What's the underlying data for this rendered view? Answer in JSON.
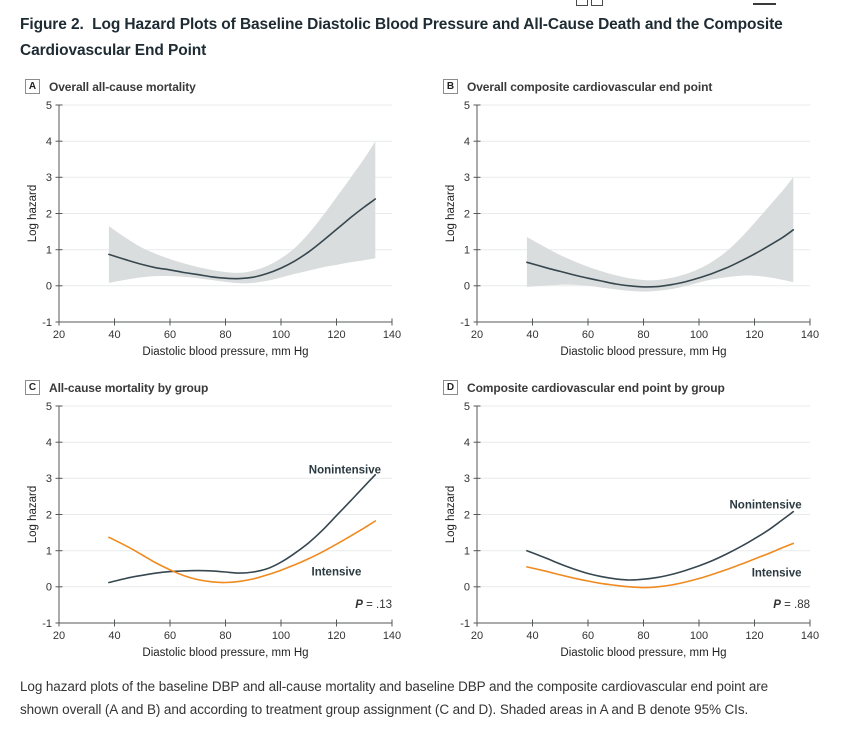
{
  "header": {
    "title_lines": [
      "Figure 2.  Log Hazard Plots of Baseline Diastolic Blood Pressure and All-Cause Death and the Composite",
      "Cardiovascular End Point"
    ]
  },
  "caption": {
    "lines": [
      "Log hazard plots of the baseline DBP and all-cause mortality and baseline DBP and the composite cardiovascular end point are",
      "shown overall (A and B) and according to treatment group assignment (C and D). Shaded areas in A and B denote 95% CIs."
    ]
  },
  "colors": {
    "grid": "#e8ebeb",
    "axis": "#55595a",
    "tick_text": "#333333",
    "axis_title_text": "#222222",
    "band": "#d9dddd",
    "dark_line": "#37474f",
    "orange_line": "#f08a1f",
    "annotation_text": "#2b3a40",
    "p_text": "#333333"
  },
  "chart_data": [
    {
      "type": "line",
      "letter": "A",
      "title": "Overall all-cause mortality",
      "xlabel": "Diastolic blood pressure, mm Hg",
      "ylabel": "Log hazard",
      "xlim": [
        20,
        140
      ],
      "ylim": [
        -1,
        5
      ],
      "xticks": [
        20,
        40,
        60,
        80,
        100,
        120,
        140
      ],
      "yticks": [
        -1,
        0,
        1,
        2,
        3,
        4,
        5
      ],
      "grid_yticks": [
        0,
        1,
        2,
        3,
        4,
        5
      ],
      "x": [
        38,
        45,
        50,
        55,
        60,
        65,
        70,
        75,
        80,
        85,
        90,
        95,
        100,
        105,
        110,
        115,
        120,
        125,
        130,
        134
      ],
      "band": {
        "label": "95% CI",
        "upper": [
          1.65,
          1.28,
          1.05,
          0.88,
          0.74,
          0.62,
          0.52,
          0.44,
          0.38,
          0.36,
          0.42,
          0.55,
          0.76,
          1.05,
          1.45,
          1.93,
          2.45,
          2.98,
          3.52,
          4.0
        ],
        "lower": [
          0.08,
          0.18,
          0.24,
          0.27,
          0.27,
          0.25,
          0.21,
          0.16,
          0.11,
          0.07,
          0.08,
          0.14,
          0.23,
          0.33,
          0.42,
          0.51,
          0.58,
          0.65,
          0.71,
          0.76
        ]
      },
      "series": [
        {
          "name": "Overall",
          "color": "#37474f",
          "y": [
            0.87,
            0.7,
            0.59,
            0.5,
            0.44,
            0.37,
            0.31,
            0.25,
            0.21,
            0.2,
            0.24,
            0.34,
            0.49,
            0.69,
            0.94,
            1.24,
            1.56,
            1.88,
            2.18,
            2.4
          ]
        }
      ],
      "labels": [],
      "p": null
    },
    {
      "type": "line",
      "letter": "B",
      "title": "Overall composite cardiovascular end point",
      "xlabel": "Diastolic blood pressure, mm Hg",
      "ylabel": "Log hazard",
      "xlim": [
        20,
        140
      ],
      "ylim": [
        -1,
        5
      ],
      "xticks": [
        20,
        40,
        60,
        80,
        100,
        120,
        140
      ],
      "yticks": [
        -1,
        0,
        1,
        2,
        3,
        4,
        5
      ],
      "grid_yticks": [
        0,
        1,
        2,
        3,
        4,
        5
      ],
      "x": [
        38,
        45,
        50,
        55,
        60,
        65,
        70,
        75,
        80,
        85,
        90,
        95,
        100,
        105,
        110,
        115,
        120,
        125,
        130,
        134
      ],
      "band": {
        "label": "95% CI",
        "upper": [
          1.35,
          1.05,
          0.85,
          0.68,
          0.53,
          0.4,
          0.29,
          0.21,
          0.16,
          0.16,
          0.22,
          0.32,
          0.47,
          0.68,
          0.96,
          1.32,
          1.74,
          2.18,
          2.62,
          3.0
        ],
        "lower": [
          -0.03,
          0.01,
          0.03,
          0.03,
          0.0,
          -0.05,
          -0.1,
          -0.14,
          -0.16,
          -0.14,
          -0.09,
          -0.01,
          0.09,
          0.18,
          0.24,
          0.28,
          0.28,
          0.24,
          0.17,
          0.1
        ]
      },
      "series": [
        {
          "name": "Overall",
          "color": "#37474f",
          "y": [
            0.65,
            0.5,
            0.4,
            0.3,
            0.21,
            0.13,
            0.05,
            0.0,
            -0.03,
            -0.02,
            0.03,
            0.11,
            0.22,
            0.35,
            0.5,
            0.68,
            0.88,
            1.1,
            1.33,
            1.55
          ]
        }
      ],
      "labels": [],
      "p": null
    },
    {
      "type": "line",
      "letter": "C",
      "title": "All-cause mortality by group",
      "xlabel": "Diastolic blood pressure, mm Hg",
      "ylabel": "Log hazard",
      "xlim": [
        20,
        140
      ],
      "ylim": [
        -1,
        5
      ],
      "xticks": [
        20,
        40,
        60,
        80,
        100,
        120,
        140
      ],
      "yticks": [
        -1,
        0,
        1,
        2,
        3,
        4,
        5
      ],
      "grid_yticks": [
        0,
        1,
        2,
        3,
        4,
        5
      ],
      "x": [
        38,
        45,
        50,
        55,
        60,
        65,
        70,
        75,
        80,
        85,
        90,
        95,
        100,
        105,
        110,
        115,
        120,
        125,
        130,
        134
      ],
      "band": null,
      "series": [
        {
          "name": "Nonintensive",
          "color": "#37474f",
          "y": [
            0.12,
            0.25,
            0.32,
            0.38,
            0.42,
            0.44,
            0.45,
            0.44,
            0.41,
            0.38,
            0.41,
            0.5,
            0.68,
            0.93,
            1.22,
            1.57,
            1.97,
            2.37,
            2.78,
            3.1
          ]
        },
        {
          "name": "Intensive",
          "color": "#f08a1f",
          "y": [
            1.37,
            1.1,
            0.88,
            0.66,
            0.47,
            0.31,
            0.2,
            0.14,
            0.12,
            0.15,
            0.22,
            0.33,
            0.46,
            0.61,
            0.78,
            0.97,
            1.18,
            1.4,
            1.63,
            1.82
          ]
        }
      ],
      "labels": [
        {
          "text": "Nonintensive",
          "x": 110,
          "y": 3.25,
          "anchor": "start"
        },
        {
          "text": "Intensive",
          "x": 111,
          "y": 0.42,
          "anchor": "start"
        }
      ],
      "p": {
        "symbol": "P",
        "rest": " = .13",
        "x": 140,
        "y": -0.47,
        "anchor": "end"
      }
    },
    {
      "type": "line",
      "letter": "D",
      "title": "Composite cardiovascular end point by group",
      "xlabel": "Diastolic blood pressure, mm Hg",
      "ylabel": "Log hazard",
      "xlim": [
        20,
        140
      ],
      "ylim": [
        -1,
        5
      ],
      "xticks": [
        20,
        40,
        60,
        80,
        100,
        120,
        140
      ],
      "yticks": [
        -1,
        0,
        1,
        2,
        3,
        4,
        5
      ],
      "grid_yticks": [
        0,
        1,
        2,
        3,
        4,
        5
      ],
      "x": [
        38,
        45,
        50,
        55,
        60,
        65,
        70,
        75,
        80,
        85,
        90,
        95,
        100,
        105,
        110,
        115,
        120,
        125,
        130,
        134
      ],
      "band": null,
      "series": [
        {
          "name": "Nonintensive",
          "color": "#37474f",
          "y": [
            1.0,
            0.79,
            0.63,
            0.49,
            0.37,
            0.28,
            0.22,
            0.19,
            0.21,
            0.26,
            0.34,
            0.45,
            0.58,
            0.73,
            0.91,
            1.11,
            1.33,
            1.57,
            1.85,
            2.08
          ]
        },
        {
          "name": "Intensive",
          "color": "#f08a1f",
          "y": [
            0.55,
            0.43,
            0.33,
            0.24,
            0.16,
            0.09,
            0.04,
            0.0,
            -0.02,
            0.0,
            0.05,
            0.13,
            0.23,
            0.35,
            0.48,
            0.62,
            0.77,
            0.92,
            1.08,
            1.2
          ]
        }
      ],
      "labels": [
        {
          "text": "Nonintensive",
          "x": 111,
          "y": 2.28,
          "anchor": "start"
        },
        {
          "text": "Intensive",
          "x": 119,
          "y": 0.4,
          "anchor": "start"
        }
      ],
      "p": {
        "symbol": "P",
        "rest": " = .88",
        "x": 140,
        "y": -0.47,
        "anchor": "end"
      }
    }
  ]
}
